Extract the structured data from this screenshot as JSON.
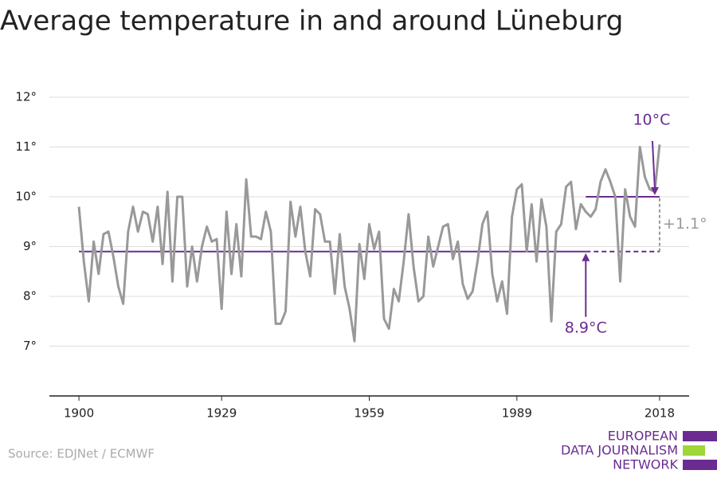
{
  "chart_data": {
    "type": "line",
    "title": "Average temperature in and around Lüneburg",
    "source": "Source: EDJNet / ECMWF",
    "logo": [
      "EUROPEAN",
      "DATA JOURNALISM",
      "NETWORK"
    ],
    "color": "#999999",
    "x": [
      1900,
      1901,
      1902,
      1903,
      1904,
      1905,
      1906,
      1907,
      1908,
      1909,
      1910,
      1911,
      1912,
      1913,
      1914,
      1915,
      1916,
      1917,
      1918,
      1919,
      1920,
      1921,
      1922,
      1923,
      1924,
      1925,
      1926,
      1927,
      1928,
      1929,
      1930,
      1931,
      1932,
      1933,
      1934,
      1935,
      1936,
      1937,
      1938,
      1939,
      1940,
      1941,
      1942,
      1943,
      1944,
      1945,
      1946,
      1947,
      1948,
      1949,
      1950,
      1951,
      1952,
      1953,
      1954,
      1955,
      1956,
      1957,
      1958,
      1959,
      1960,
      1961,
      1962,
      1963,
      1964,
      1965,
      1966,
      1967,
      1968,
      1969,
      1970,
      1971,
      1972,
      1973,
      1974,
      1975,
      1976,
      1977,
      1978,
      1979,
      1980,
      1981,
      1982,
      1983,
      1984,
      1985,
      1986,
      1987,
      1988,
      1989,
      1990,
      1991,
      1992,
      1993,
      1994,
      1995,
      1996,
      1997,
      1998,
      1999,
      2000,
      2001,
      2002,
      2003,
      2004,
      2005,
      2006,
      2007,
      2008,
      2009,
      2010,
      2011,
      2012,
      2013,
      2014,
      2015,
      2016,
      2017,
      2018
    ],
    "values": [
      9.8,
      8.7,
      7.9,
      9.1,
      8.45,
      9.25,
      9.3,
      8.8,
      8.2,
      7.85,
      9.3,
      9.8,
      9.3,
      9.7,
      9.65,
      9.1,
      9.8,
      8.65,
      10.1,
      8.3,
      10.0,
      10.0,
      8.2,
      9.0,
      8.3,
      9.0,
      9.4,
      9.1,
      9.15,
      7.75,
      9.7,
      8.45,
      9.45,
      8.4,
      10.35,
      9.2,
      9.2,
      9.15,
      9.7,
      9.3,
      7.45,
      7.45,
      7.7,
      9.9,
      9.2,
      9.8,
      8.9,
      8.4,
      9.75,
      9.65,
      9.1,
      9.1,
      8.05,
      9.25,
      8.2,
      7.75,
      7.1,
      9.05,
      8.35,
      9.45,
      8.95,
      9.3,
      7.55,
      7.35,
      8.15,
      7.9,
      8.7,
      9.65,
      8.6,
      7.9,
      8.0,
      9.2,
      8.6,
      9.0,
      9.4,
      9.45,
      8.75,
      9.1,
      8.25,
      7.95,
      8.1,
      8.7,
      9.45,
      9.7,
      8.45,
      7.9,
      8.3,
      7.65,
      9.6,
      10.15,
      10.25,
      8.9,
      9.85,
      8.7,
      9.95,
      9.4,
      7.5,
      9.3,
      9.45,
      10.2,
      10.3,
      9.35,
      9.85,
      9.7,
      9.6,
      9.75,
      10.3,
      10.55,
      10.3,
      10.0,
      8.3,
      10.15,
      9.6,
      9.4,
      11.0,
      10.4,
      10.15,
      10.1,
      11.05
    ],
    "xlim": [
      1894,
      2024
    ],
    "xticks": [
      1900,
      1929,
      1959,
      1989,
      2018
    ],
    "ylim": [
      6,
      12
    ],
    "yticks": [
      {
        "value": 7,
        "label": "7°"
      },
      {
        "value": 8,
        "label": "8°"
      },
      {
        "value": 9,
        "label": "9°"
      },
      {
        "value": 10,
        "label": "10°"
      },
      {
        "value": 11,
        "label": "11°"
      },
      {
        "value": 12,
        "label": "12°"
      }
    ],
    "grid": true,
    "annotations": {
      "baseline": {
        "value": 8.9,
        "x_start": 1900,
        "x_dashed": 2003,
        "x_end": 2018,
        "label": "8.9°C",
        "color": "#6a2c91"
      },
      "recent": {
        "value": 10,
        "x_start": 2003,
        "x_end": 2018,
        "label": "10°C",
        "color": "#6a2c91"
      },
      "difference": {
        "value": 1.1,
        "label": "+1.1°",
        "color": "#999999"
      }
    }
  }
}
